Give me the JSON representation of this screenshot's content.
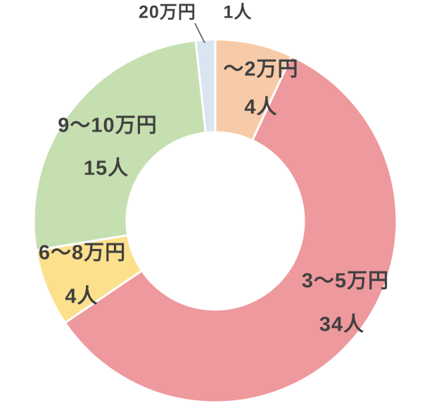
{
  "chart_data": {
    "type": "pie",
    "subtype": "donut",
    "title": "",
    "unit": "人",
    "legend": "none",
    "start_angle_deg": 0,
    "direction": "clockwise",
    "hole_ratio": 0.49,
    "background_color": "#ffffff",
    "label_color": "#404040",
    "leader_line_color": "#595959",
    "separator_color": "#ffffff",
    "categories": [
      "～2万円",
      "3～5万円",
      "6～8万円",
      "9～10万円",
      "20万円"
    ],
    "values": [
      4,
      34,
      4,
      15,
      1
    ],
    "slices": [
      {
        "label": "～2万円",
        "value": 4,
        "count_label": "4人",
        "color": "#F8CBA8",
        "label_placement": "inside"
      },
      {
        "label": "3～5万円",
        "value": 34,
        "count_label": "34人",
        "color": "#EE999D",
        "label_placement": "inside"
      },
      {
        "label": "6～8万円",
        "value": 4,
        "count_label": "4人",
        "color": "#FDE08C",
        "label_placement": "inside"
      },
      {
        "label": "9～10万円",
        "value": 15,
        "count_label": "15人",
        "color": "#C6DFB1",
        "label_placement": "inside"
      },
      {
        "label": "20万円",
        "value": 1,
        "count_label": "1人",
        "color": "#D9E5F1",
        "label_placement": "outside-top"
      }
    ]
  }
}
